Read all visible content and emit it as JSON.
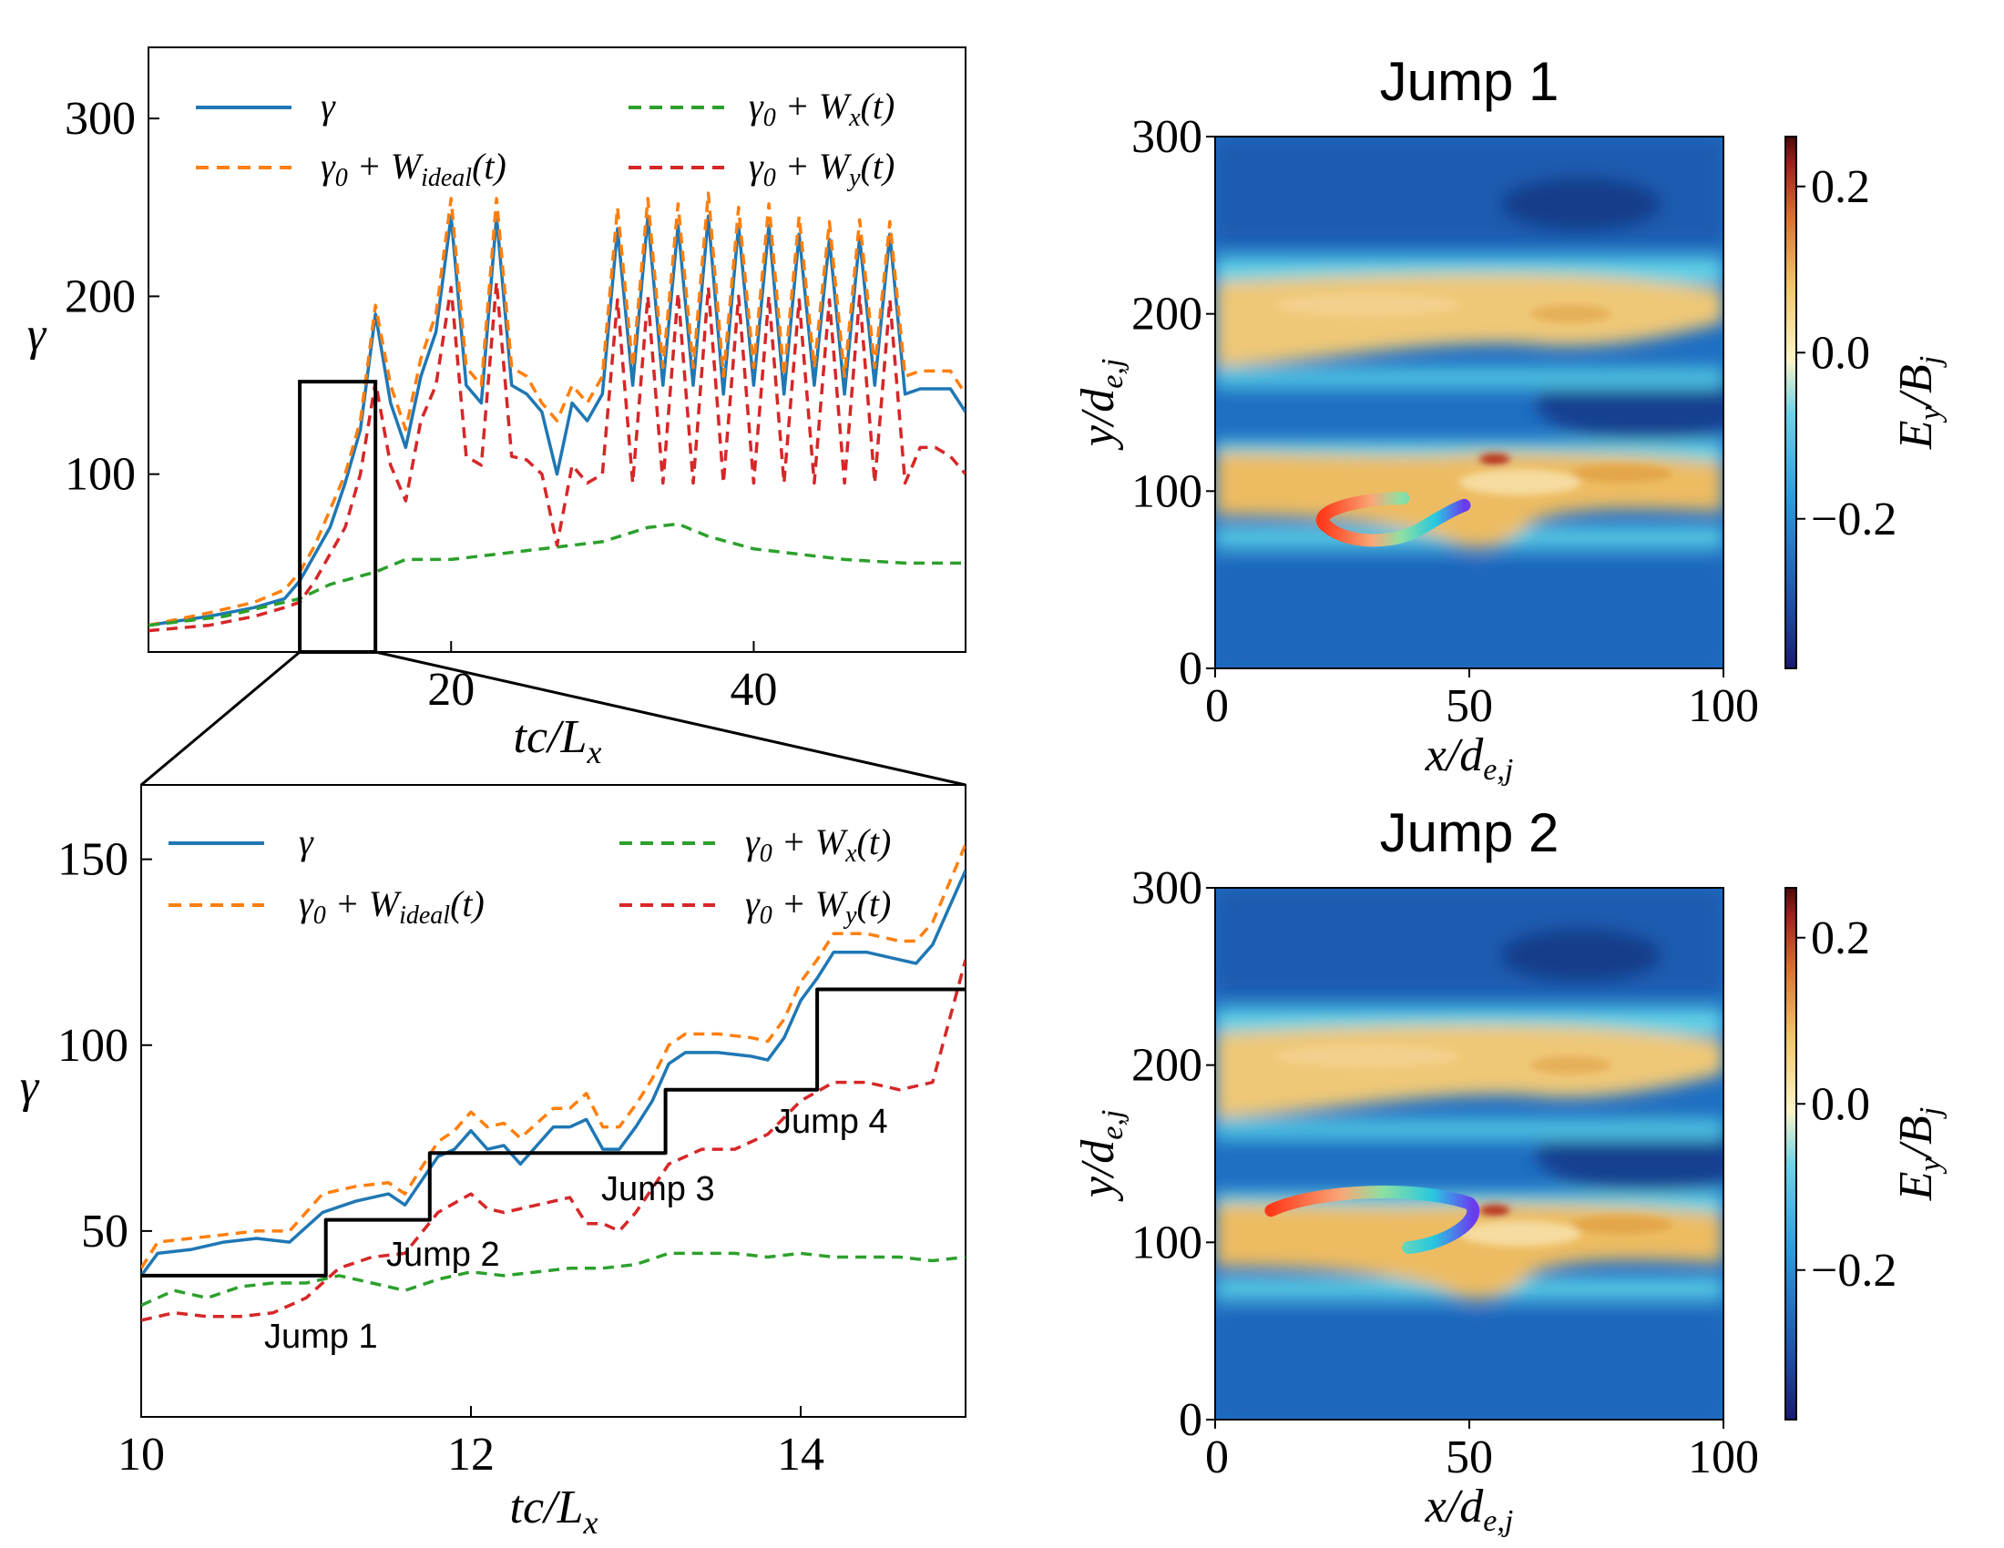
{
  "colors": {
    "gamma": "#1f77b4",
    "ideal": "#ff7f0e",
    "wx": "#2ca02c",
    "wy": "#d62728",
    "steps": "#000000"
  },
  "chart_data": [
    {
      "id": "top-left",
      "type": "line",
      "xlabel": "tc/L_x",
      "ylabel": "γ",
      "xlim": [
        0,
        54
      ],
      "ylim": [
        0,
        340
      ],
      "xticks": [
        "20",
        "40"
      ],
      "yticks": [
        "100",
        "200",
        "300"
      ],
      "legend": [
        "γ",
        "γ0 + W_ideal(t)",
        "γ0 + W_x(t)",
        "γ0 + W_y(t)"
      ],
      "inset_box": {
        "x": [
          10,
          15
        ],
        "y": [
          0,
          152
        ]
      },
      "series": [
        {
          "name": "γ",
          "x": [
            0,
            4,
            7,
            9,
            10,
            11,
            12,
            13,
            14,
            15,
            16,
            17,
            18,
            19,
            20,
            21,
            22,
            23,
            24,
            25,
            26,
            27,
            28,
            29,
            30,
            31,
            32,
            33,
            34,
            35,
            36,
            37,
            38,
            39,
            40,
            41,
            42,
            43,
            44,
            45,
            46,
            47,
            48,
            49,
            50,
            51,
            52,
            53,
            54
          ],
          "y": [
            15,
            20,
            25,
            30,
            40,
            55,
            70,
            95,
            125,
            190,
            140,
            115,
            155,
            180,
            245,
            150,
            140,
            245,
            150,
            145,
            135,
            100,
            140,
            130,
            145,
            238,
            150,
            245,
            150,
            240,
            150,
            245,
            145,
            240,
            150,
            240,
            145,
            235,
            150,
            232,
            145,
            233,
            150,
            235,
            145,
            148,
            148,
            148,
            135
          ]
        },
        {
          "name": "γ0 + W_ideal(t)",
          "x": [
            0,
            4,
            7,
            9,
            10,
            11,
            12,
            13,
            14,
            15,
            16,
            17,
            18,
            19,
            20,
            21,
            22,
            23,
            24,
            25,
            26,
            27,
            28,
            29,
            30,
            31,
            32,
            33,
            34,
            35,
            36,
            37,
            38,
            39,
            40,
            41,
            42,
            43,
            44,
            45,
            46,
            47,
            48,
            49,
            50,
            51,
            52,
            53,
            54
          ],
          "y": [
            15,
            22,
            28,
            35,
            45,
            60,
            80,
            100,
            130,
            195,
            150,
            125,
            165,
            190,
            255,
            160,
            150,
            255,
            160,
            155,
            140,
            130,
            150,
            140,
            155,
            250,
            160,
            255,
            160,
            252,
            160,
            258,
            155,
            250,
            160,
            252,
            155,
            245,
            160,
            242,
            155,
            243,
            160,
            242,
            155,
            158,
            158,
            158,
            145
          ]
        },
        {
          "name": "γ0 + W_x(t)",
          "x": [
            0,
            5,
            10,
            12,
            15,
            17,
            20,
            23,
            26,
            30,
            33,
            35,
            37,
            40,
            43,
            46,
            50,
            54
          ],
          "y": [
            15,
            20,
            30,
            38,
            45,
            52,
            52,
            55,
            58,
            62,
            70,
            72,
            65,
            58,
            55,
            52,
            50,
            50
          ]
        },
        {
          "name": "γ0 + W_y(t)",
          "x": [
            0,
            4,
            7,
            9,
            10,
            11,
            12,
            13,
            14,
            15,
            16,
            17,
            18,
            19,
            20,
            21,
            22,
            23,
            24,
            25,
            26,
            27,
            28,
            29,
            30,
            31,
            32,
            33,
            34,
            35,
            36,
            37,
            38,
            39,
            40,
            41,
            42,
            43,
            44,
            45,
            46,
            47,
            48,
            49,
            50,
            51,
            52,
            53,
            54
          ],
          "y": [
            12,
            15,
            20,
            25,
            28,
            40,
            55,
            70,
            100,
            152,
            105,
            85,
            130,
            150,
            205,
            110,
            105,
            208,
            110,
            108,
            100,
            60,
            105,
            95,
            100,
            198,
            95,
            200,
            95,
            202,
            95,
            205,
            95,
            200,
            95,
            200,
            95,
            198,
            95,
            198,
            95,
            200,
            95,
            198,
            95,
            115,
            115,
            110,
            100
          ]
        }
      ]
    },
    {
      "id": "bottom-left",
      "type": "line",
      "xlabel": "tc/L_x",
      "ylabel": "γ",
      "xlim": [
        10,
        15
      ],
      "ylim": [
        0,
        170
      ],
      "xticks": [
        "10",
        "12",
        "14"
      ],
      "yticks": [
        "50",
        "100",
        "150"
      ],
      "legend": [
        "γ",
        "γ0 + W_ideal(t)",
        "γ0 + W_x(t)",
        "γ0 + W_y(t)"
      ],
      "annotations": [
        "Jump 1",
        "Jump 2",
        "Jump 3",
        "Jump 4"
      ],
      "series": [
        {
          "name": "γ",
          "x": [
            10,
            10.1,
            10.3,
            10.5,
            10.7,
            10.9,
            11.1,
            11.3,
            11.5,
            11.6,
            11.8,
            11.9,
            12.0,
            12.1,
            12.2,
            12.3,
            12.5,
            12.6,
            12.7,
            12.8,
            12.9,
            13.0,
            13.1,
            13.2,
            13.3,
            13.5,
            13.7,
            13.8,
            13.9,
            14.0,
            14.1,
            14.2,
            14.4,
            14.6,
            14.7,
            14.8,
            15.0
          ],
          "y": [
            38,
            44,
            45,
            47,
            48,
            47,
            55,
            58,
            60,
            57,
            70,
            72,
            77,
            72,
            73,
            68,
            78,
            78,
            80,
            72,
            72,
            78,
            85,
            95,
            98,
            98,
            97,
            96,
            102,
            112,
            118,
            125,
            125,
            123,
            122,
            127,
            147
          ]
        },
        {
          "name": "γ0 + W_ideal(t)",
          "x": [
            10,
            10.1,
            10.3,
            10.5,
            10.7,
            10.9,
            11.1,
            11.3,
            11.5,
            11.6,
            11.8,
            11.9,
            12.0,
            12.1,
            12.2,
            12.3,
            12.5,
            12.6,
            12.7,
            12.8,
            12.9,
            13.0,
            13.1,
            13.2,
            13.3,
            13.5,
            13.7,
            13.8,
            13.9,
            14.0,
            14.1,
            14.2,
            14.4,
            14.6,
            14.7,
            14.8,
            15.0
          ],
          "y": [
            40,
            47,
            48,
            49,
            50,
            50,
            60,
            62,
            63,
            60,
            74,
            77,
            82,
            78,
            79,
            75,
            83,
            83,
            87,
            78,
            78,
            84,
            91,
            100,
            103,
            103,
            102,
            101,
            107,
            117,
            123,
            130,
            130,
            128,
            128,
            133,
            154
          ]
        },
        {
          "name": "γ0 + W_x(t)",
          "x": [
            10,
            10.2,
            10.4,
            10.6,
            10.8,
            11.0,
            11.2,
            11.4,
            11.6,
            11.8,
            12.0,
            12.2,
            12.4,
            12.6,
            12.8,
            13.0,
            13.2,
            13.4,
            13.6,
            13.8,
            14.0,
            14.2,
            14.4,
            14.6,
            14.8,
            15.0
          ],
          "y": [
            30,
            34,
            32,
            35,
            36,
            36,
            38,
            36,
            34,
            37,
            39,
            38,
            39,
            40,
            40,
            41,
            44,
            44,
            44,
            43,
            44,
            43,
            43,
            43,
            42,
            43
          ]
        },
        {
          "name": "γ0 + W_y(t)",
          "x": [
            10,
            10.2,
            10.4,
            10.6,
            10.8,
            11.0,
            11.2,
            11.4,
            11.6,
            11.8,
            12.0,
            12.1,
            12.2,
            12.4,
            12.5,
            12.6,
            12.7,
            12.8,
            12.9,
            13.0,
            13.2,
            13.4,
            13.6,
            13.8,
            14.0,
            14.2,
            14.4,
            14.6,
            14.8,
            15.0
          ],
          "y": [
            26,
            28,
            27,
            27,
            28,
            32,
            40,
            43,
            44,
            55,
            60,
            56,
            55,
            57,
            58,
            59,
            52,
            52,
            50,
            55,
            68,
            72,
            72,
            76,
            85,
            90,
            90,
            88,
            90,
            123
          ]
        },
        {
          "name": "steps",
          "x": [
            10,
            11.12,
            11.12,
            11.75,
            11.75,
            13.18,
            13.18,
            14.1,
            14.1,
            15.0
          ],
          "y": [
            38,
            38,
            53,
            53,
            71,
            71,
            88,
            88,
            115,
            115
          ]
        }
      ]
    },
    {
      "id": "top-right",
      "type": "heatmap",
      "title": "Jump 1",
      "xlabel": "x/d_e,j",
      "ylabel": "y/d_e,j",
      "xlim": [
        0,
        100
      ],
      "ylim": [
        0,
        300
      ],
      "xticks": [
        "0",
        "50",
        "100"
      ],
      "yticks": [
        "0",
        "100",
        "200",
        "300"
      ],
      "colorbar": {
        "label": "E_y/B_j",
        "ticks": [
          "0.2",
          "0.0",
          "−0.2"
        ],
        "range": [
          -0.38,
          0.26
        ]
      }
    },
    {
      "id": "bottom-right",
      "type": "heatmap",
      "title": "Jump 2",
      "xlabel": "x/d_e,j",
      "ylabel": "y/d_e,j",
      "xlim": [
        0,
        100
      ],
      "ylim": [
        0,
        300
      ],
      "xticks": [
        "0",
        "50",
        "100"
      ],
      "yticks": [
        "0",
        "100",
        "200",
        "300"
      ],
      "colorbar": {
        "label": "E_y/B_j",
        "ticks": [
          "0.2",
          "0.0",
          "−0.2"
        ],
        "range": [
          -0.38,
          0.26
        ]
      }
    }
  ]
}
